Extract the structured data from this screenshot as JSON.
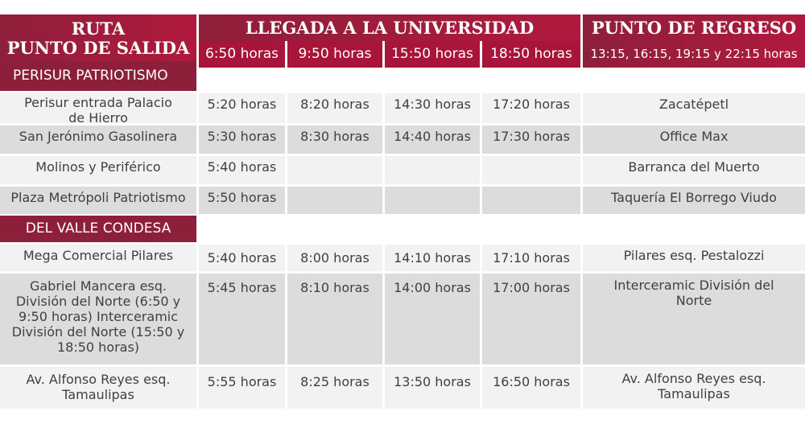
{
  "header": {
    "ruta_line1": "RUTA",
    "ruta_line2": "PUNTO DE SALIDA",
    "llegada": "LLEGADA A LA UNIVERSIDAD",
    "regreso": "PUNTO DE REGRESO",
    "regreso_times": "13:15, 16:15, 19:15 y 22:15 horas",
    "times": [
      "6:50 horas",
      "9:50 horas",
      "15:50 horas",
      "18:50 horas"
    ]
  },
  "sections": [
    {
      "name": "PERISUR PATRIOTISMO",
      "rows": [
        {
          "origin": "Perisur entrada Palacio de Hierro",
          "t": [
            "5:20 horas",
            "8:20 horas",
            "14:30 horas",
            "17:20 horas"
          ],
          "ret": "Zacatépetl"
        },
        {
          "origin": "San Jerónimo Gasolinera",
          "t": [
            "5:30 horas",
            "8:30 horas",
            "14:40 horas",
            "17:30 horas"
          ],
          "ret": "Office Max"
        },
        {
          "origin": "Molinos y Periférico",
          "t": [
            "5:40 horas",
            "",
            "",
            ""
          ],
          "ret": "Barranca del Muerto"
        },
        {
          "origin": "Plaza Metrópoli Patriotismo",
          "t": [
            "5:50 horas",
            "",
            "",
            ""
          ],
          "ret": "Taquería El Borrego Viudo"
        }
      ]
    },
    {
      "name": "DEL VALLE CONDESA",
      "rows": [
        {
          "origin": "Mega Comercial Pilares",
          "t": [
            "5:40 horas",
            "8:00 horas",
            "14:10 horas",
            "17:10 horas"
          ],
          "ret": "Pilares esq.  Pestalozzi"
        },
        {
          "origin": "Gabriel Mancera esq. División del Norte (6:50 y 9:50 horas) Interceramic División del Norte (15:50 y 18:50 horas)",
          "t": [
            "5:45 horas",
            "8:10 horas",
            "14:00 horas",
            "17:00 horas"
          ],
          "ret": "Interceramic División del Norte"
        },
        {
          "origin": "Av. Alfonso Reyes esq. Tamaulipas",
          "t": [
            "5:55 horas",
            "8:25 horas",
            "13:50 horas",
            "16:50 horas"
          ],
          "ret": "Av. Alfonso Reyes esq. Tamaulipas"
        }
      ]
    }
  ]
}
